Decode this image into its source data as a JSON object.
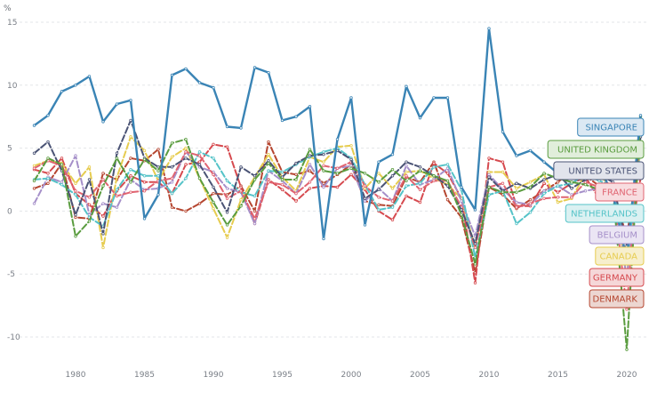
{
  "chart_data": {
    "type": "line",
    "unit_label": "%",
    "xlim": [
      1977,
      2021
    ],
    "ylim": [
      -12,
      15.5
    ],
    "x_ticks": [
      1980,
      1985,
      1990,
      1995,
      2000,
      2005,
      2010,
      2015,
      2020
    ],
    "y_ticks": [
      15,
      10,
      5,
      0,
      -5,
      -10
    ],
    "grid": "horizontal dashed",
    "legend_placement": "right",
    "x": [
      1977,
      1978,
      1979,
      1980,
      1981,
      1982,
      1983,
      1984,
      1985,
      1986,
      1987,
      1988,
      1989,
      1990,
      1991,
      1992,
      1993,
      1994,
      1995,
      1996,
      1997,
      1998,
      1999,
      2000,
      2001,
      2002,
      2003,
      2004,
      2005,
      2006,
      2007,
      2008,
      2009,
      2010,
      2011,
      2012,
      2013,
      2014,
      2015,
      2016,
      2017,
      2018,
      2019,
      2020,
      2021
    ],
    "series": [
      {
        "name": "SINGAPORE",
        "color": "#3a84b5",
        "label_bg": "#dbe8f3",
        "values": [
          6.8,
          7.6,
          9.5,
          10.0,
          10.7,
          7.1,
          8.5,
          8.8,
          -0.6,
          1.3,
          10.8,
          11.3,
          10.2,
          9.8,
          6.7,
          6.6,
          11.4,
          11.0,
          7.2,
          7.5,
          8.3,
          -2.2,
          5.7,
          9.0,
          -1.1,
          3.9,
          4.5,
          9.9,
          7.4,
          9.0,
          9.0,
          1.9,
          0.1,
          14.5,
          6.3,
          4.4,
          4.8,
          3.9,
          3.0,
          3.2,
          3.6,
          3.5,
          1.3,
          -3.9,
          7.6
        ]
      },
      {
        "name": "UNITED KINGDOM",
        "color": "#5a9c3f",
        "label_bg": "#e1eedb",
        "values": [
          2.4,
          4.2,
          3.7,
          -2.0,
          -0.8,
          2.0,
          4.2,
          2.3,
          4.1,
          3.2,
          5.4,
          5.7,
          2.6,
          0.7,
          -1.1,
          0.4,
          2.5,
          3.8,
          2.5,
          2.5,
          4.9,
          3.2,
          3.0,
          3.4,
          3.0,
          2.3,
          3.3,
          2.4,
          3.2,
          2.8,
          2.4,
          -0.3,
          -4.2,
          1.9,
          1.5,
          1.5,
          1.9,
          3.0,
          2.6,
          2.3,
          2.1,
          1.7,
          1.6,
          -11.0,
          7.5
        ]
      },
      {
        "name": "UNITED STATES",
        "color": "#4a5375",
        "label_bg": "#e2e4ec",
        "values": [
          4.6,
          5.5,
          3.2,
          -0.3,
          2.5,
          -1.8,
          4.6,
          7.2,
          4.2,
          3.5,
          3.5,
          4.2,
          3.7,
          1.9,
          -0.1,
          3.5,
          2.8,
          4.0,
          2.7,
          3.8,
          4.4,
          4.5,
          4.8,
          4.1,
          1.0,
          1.7,
          2.8,
          3.9,
          3.5,
          2.8,
          2.0,
          0.1,
          -2.6,
          2.7,
          1.6,
          2.2,
          1.8,
          2.5,
          2.9,
          1.8,
          2.5,
          2.9,
          2.3,
          -2.8,
          5.9
        ]
      },
      {
        "name": "FRANCE",
        "color": "#e06471",
        "label_bg": "#f8dde0",
        "values": [
          3.4,
          4.0,
          3.6,
          1.6,
          1.1,
          2.5,
          1.2,
          1.5,
          1.6,
          2.4,
          2.6,
          4.7,
          4.4,
          2.9,
          1.0,
          1.6,
          -0.6,
          2.3,
          2.1,
          1.4,
          2.3,
          3.6,
          3.4,
          3.9,
          2.0,
          1.1,
          0.8,
          2.8,
          1.7,
          2.4,
          2.4,
          0.3,
          -2.9,
          1.9,
          2.2,
          0.3,
          0.6,
          1.0,
          1.1,
          1.1,
          2.3,
          1.9,
          1.8,
          -7.8,
          6.8
        ]
      },
      {
        "name": "NETHERLANDS",
        "color": "#55c3c8",
        "label_bg": "#dbf1f2",
        "values": [
          2.5,
          2.6,
          2.1,
          1.3,
          -0.5,
          -1.2,
          1.7,
          3.3,
          2.8,
          2.8,
          1.4,
          2.6,
          4.7,
          4.2,
          2.4,
          1.5,
          1.2,
          3.2,
          3.1,
          3.7,
          4.3,
          4.7,
          5.0,
          4.2,
          2.1,
          0.1,
          0.3,
          2.0,
          2.2,
          3.5,
          3.7,
          1.7,
          -3.7,
          1.3,
          1.6,
          -1.0,
          -0.1,
          1.4,
          2.0,
          2.2,
          2.9,
          2.4,
          2.0,
          -3.9,
          4.9
        ]
      },
      {
        "name": "BELGIUM",
        "color": "#a58fc9",
        "label_bg": "#ebe5f4",
        "values": [
          0.6,
          2.7,
          2.3,
          4.4,
          -0.3,
          0.6,
          0.3,
          2.5,
          1.7,
          1.8,
          2.3,
          4.7,
          3.5,
          3.1,
          1.8,
          1.5,
          -1.0,
          3.2,
          2.4,
          1.4,
          3.7,
          1.9,
          3.4,
          3.6,
          0.8,
          1.8,
          0.8,
          3.6,
          2.1,
          2.5,
          3.4,
          0.8,
          -2.0,
          2.9,
          1.7,
          0.7,
          0.5,
          1.6,
          2.0,
          1.3,
          1.6,
          1.8,
          2.2,
          -5.4,
          6.3
        ]
      },
      {
        "name": "CANADA",
        "color": "#e6cc4f",
        "label_bg": "#f7efcd",
        "values": [
          3.6,
          4.0,
          3.8,
          2.2,
          3.5,
          -2.9,
          2.7,
          5.9,
          4.8,
          2.4,
          4.3,
          5.0,
          2.6,
          0.2,
          -2.1,
          0.9,
          2.7,
          4.5,
          2.7,
          1.6,
          4.3,
          3.9,
          5.1,
          5.2,
          1.8,
          3.0,
          1.8,
          3.1,
          3.2,
          2.6,
          2.1,
          1.0,
          -2.9,
          3.1,
          3.1,
          1.8,
          2.3,
          2.9,
          0.7,
          1.0,
          3.0,
          2.8,
          1.9,
          -5.2,
          5.0
        ]
      },
      {
        "name": "GERMANY",
        "color": "#d64a4f",
        "label_bg": "#f5d7d8",
        "values": [
          3.3,
          3.0,
          4.2,
          1.4,
          0.5,
          -0.4,
          1.6,
          2.8,
          2.3,
          2.3,
          1.4,
          3.7,
          3.9,
          5.3,
          5.1,
          1.9,
          -1.0,
          2.5,
          1.7,
          0.8,
          1.8,
          2.0,
          1.9,
          2.9,
          1.7,
          0.0,
          -0.7,
          1.2,
          0.7,
          3.8,
          3.0,
          1.0,
          -5.7,
          4.2,
          3.9,
          0.4,
          0.4,
          2.2,
          1.5,
          2.2,
          2.7,
          1.0,
          1.1,
          -3.7,
          2.6
        ]
      },
      {
        "name": "DENMARK",
        "color": "#b5452f",
        "label_bg": "#ecd6d1",
        "values": [
          1.8,
          2.2,
          3.8,
          -0.5,
          -0.6,
          3.0,
          2.5,
          4.2,
          4.0,
          4.9,
          0.3,
          0.0,
          0.6,
          1.4,
          1.3,
          2.0,
          0.0,
          5.5,
          3.1,
          2.9,
          3.2,
          2.2,
          2.9,
          3.7,
          0.8,
          0.5,
          0.4,
          2.7,
          2.3,
          3.9,
          0.9,
          -0.5,
          -4.9,
          1.9,
          1.3,
          0.2,
          0.9,
          1.6,
          2.3,
          3.2,
          2.8,
          2.0,
          1.5,
          -2.0,
          4.9
        ]
      }
    ]
  }
}
